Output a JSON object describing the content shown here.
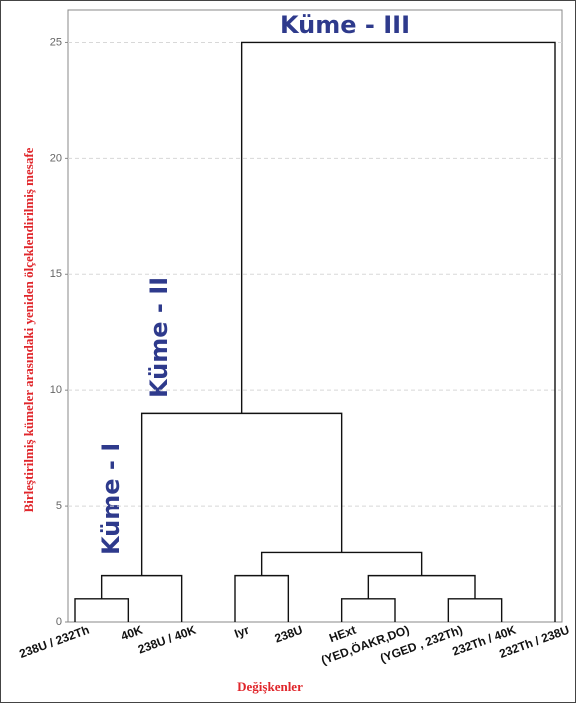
{
  "chart_data": {
    "type": "dendrogram",
    "y_label": "Birleştirilmiş kümeler arasındaki yeniden ölçeklendirilmiş mesafe",
    "x_label": "Değişkenler",
    "leaves": [
      "238U / 232Th",
      "40K",
      "238U / 40K",
      "Iyr",
      "238U",
      "HExt",
      "(YED,ÖAKR,DO)",
      "(YGED , 232Th)",
      "232Th / 40K",
      "232Th / 238U"
    ],
    "merges": [
      {
        "children": [
          0,
          1
        ],
        "height": 1
      },
      {
        "children": [
          10,
          2
        ],
        "height": 2
      },
      {
        "children": [
          3,
          4
        ],
        "height": 2
      },
      {
        "children": [
          5,
          6
        ],
        "height": 1
      },
      {
        "children": [
          7,
          8
        ],
        "height": 1
      },
      {
        "children": [
          13,
          14
        ],
        "height": 2
      },
      {
        "children": [
          12,
          15
        ],
        "height": 3
      },
      {
        "children": [
          11,
          16
        ],
        "height": 9
      },
      {
        "children": [
          17,
          9
        ],
        "height": 25
      }
    ],
    "annotations": [
      "Küme - I",
      "Küme - II",
      "Küme - III"
    ],
    "ylim": [
      0,
      26.4
    ],
    "yticks": [
      0,
      5,
      10,
      15,
      20,
      25
    ],
    "grid": true
  }
}
